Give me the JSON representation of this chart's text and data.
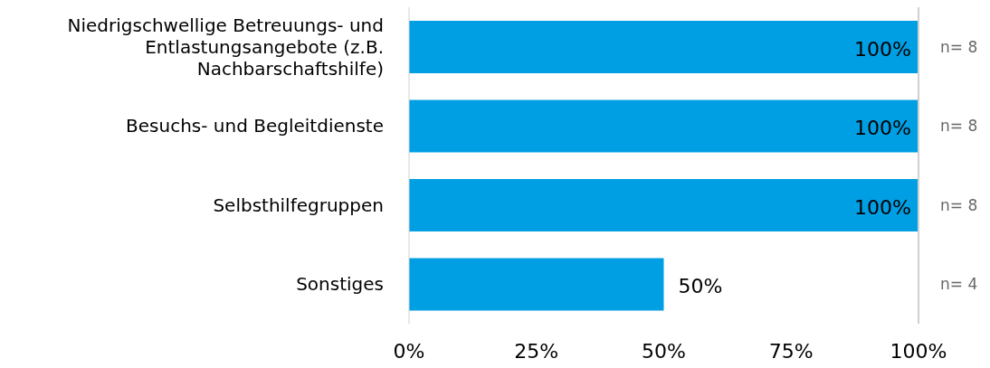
{
  "chart_data": {
    "type": "bar",
    "orientation": "horizontal",
    "categories": [
      "Niedrigschwellige Betreuungs- und Entlastungsangebote (z.B. Nachbarschaftshilfe)",
      "Besuchs- und Begleitdienste",
      "Selbsthilfegruppen",
      "Sonstiges"
    ],
    "values": [
      100,
      100,
      100,
      50
    ],
    "color": "#009fe3",
    "value_labels": [
      "100%",
      "100%",
      "100%",
      "50%"
    ],
    "xlim": [
      0,
      100
    ],
    "xticks": [
      {
        "value": 0,
        "label": "0%"
      },
      {
        "value": 25,
        "label": "25%"
      },
      {
        "value": 50,
        "label": "50%"
      },
      {
        "value": 75,
        "label": "75%"
      },
      {
        "value": 100,
        "label": "100%"
      }
    ],
    "annotations": [
      "n= 8",
      "n= 8",
      "n= 8",
      "n= 4"
    ],
    "grid": false,
    "legend": false
  }
}
